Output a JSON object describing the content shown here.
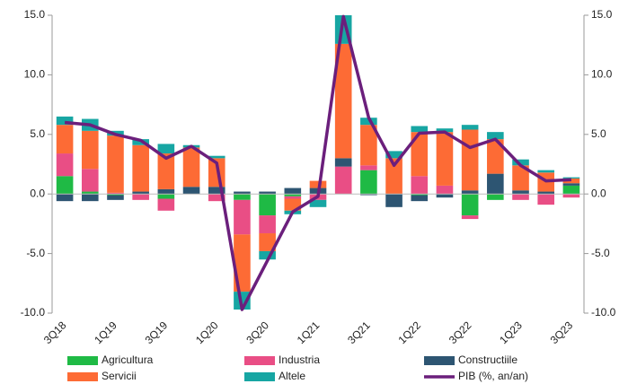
{
  "chart_data": {
    "type": "bar",
    "categories": [
      "3Q18",
      null,
      "1Q19",
      null,
      "3Q19",
      null,
      "1Q20",
      null,
      "3Q20",
      null,
      "1Q21",
      null,
      "3Q21",
      null,
      "1Q22",
      null,
      "3Q22",
      null,
      "1Q23",
      null,
      "3Q23"
    ],
    "series": [
      {
        "name": "Agricultura",
        "color": "#1fba45",
        "values": [
          1.5,
          0.2,
          -0.1,
          0,
          -0.4,
          0,
          0,
          -0.5,
          -1.8,
          -0.2,
          0,
          0,
          2.0,
          0,
          -0.1,
          0,
          -1.8,
          -0.5,
          0,
          0,
          0.7
        ]
      },
      {
        "name": "Industria",
        "color": "#e94e85",
        "values": [
          1.9,
          1.9,
          0.1,
          -0.5,
          -1.0,
          0,
          -0.6,
          -2.9,
          -1.5,
          -0.2,
          -0.5,
          2.3,
          0.4,
          0,
          1.5,
          0.7,
          -0.3,
          0,
          -0.5,
          -0.9,
          -0.3
        ]
      },
      {
        "name": "Constructiile",
        "color": "#2d5572",
        "values": [
          -0.6,
          -0.6,
          -0.4,
          0.2,
          0.4,
          0.6,
          0.6,
          0.2,
          0.2,
          0.5,
          0.5,
          0.7,
          -0.1,
          -1.1,
          -0.5,
          -0.3,
          0.3,
          1.7,
          0.3,
          0.2,
          0.2
        ]
      },
      {
        "name": "Servicii",
        "color": "#fd6b35",
        "values": [
          2.4,
          3.2,
          4.8,
          3.9,
          3.0,
          3.3,
          2.4,
          -4.8,
          -1.5,
          -1.0,
          0.6,
          9.6,
          3.4,
          3.0,
          3.7,
          4.5,
          5.1,
          2.9,
          2.1,
          1.6,
          0.4
        ]
      },
      {
        "name": "Altele",
        "color": "#17a6a3",
        "values": [
          0.7,
          1.0,
          0.4,
          0.5,
          0.8,
          0.2,
          0.2,
          -1.5,
          -0.7,
          -0.3,
          -0.6,
          2.4,
          0.6,
          0.6,
          0.5,
          0.3,
          0.4,
          0.6,
          0.5,
          0.2,
          0.1
        ]
      },
      {
        "name": "PIB (%, an/an)",
        "color": "#6b1f7c",
        "type": "line",
        "axis": "y2",
        "values": [
          6.0,
          5.8,
          5.0,
          4.5,
          3.0,
          4.0,
          2.6,
          -9.7,
          -5.6,
          -1.5,
          -0.2,
          14.9,
          6.4,
          2.4,
          5.1,
          5.2,
          3.9,
          4.6,
          2.4,
          1.1,
          1.2
        ]
      }
    ],
    "ylim": [
      -10,
      15
    ],
    "yticks": [
      {
        "value": -10,
        "label": "-10.0"
      },
      {
        "value": -5,
        "label": "-5.0"
      },
      {
        "value": 0,
        "label": "0.0"
      },
      {
        "value": 5,
        "label": "5.0"
      },
      {
        "value": 10,
        "label": "10.0"
      },
      {
        "value": 15,
        "label": "15.0"
      }
    ],
    "y2lim": [
      -10,
      15
    ],
    "y2ticks": [
      {
        "value": -10,
        "label": "-10.0"
      },
      {
        "value": -5,
        "label": "-5.0"
      },
      {
        "value": 0,
        "label": "0.0"
      },
      {
        "value": 5,
        "label": "5.0"
      },
      {
        "value": 10,
        "label": "10.0"
      },
      {
        "value": 15,
        "label": "15.0"
      }
    ],
    "legend": "bottom"
  }
}
